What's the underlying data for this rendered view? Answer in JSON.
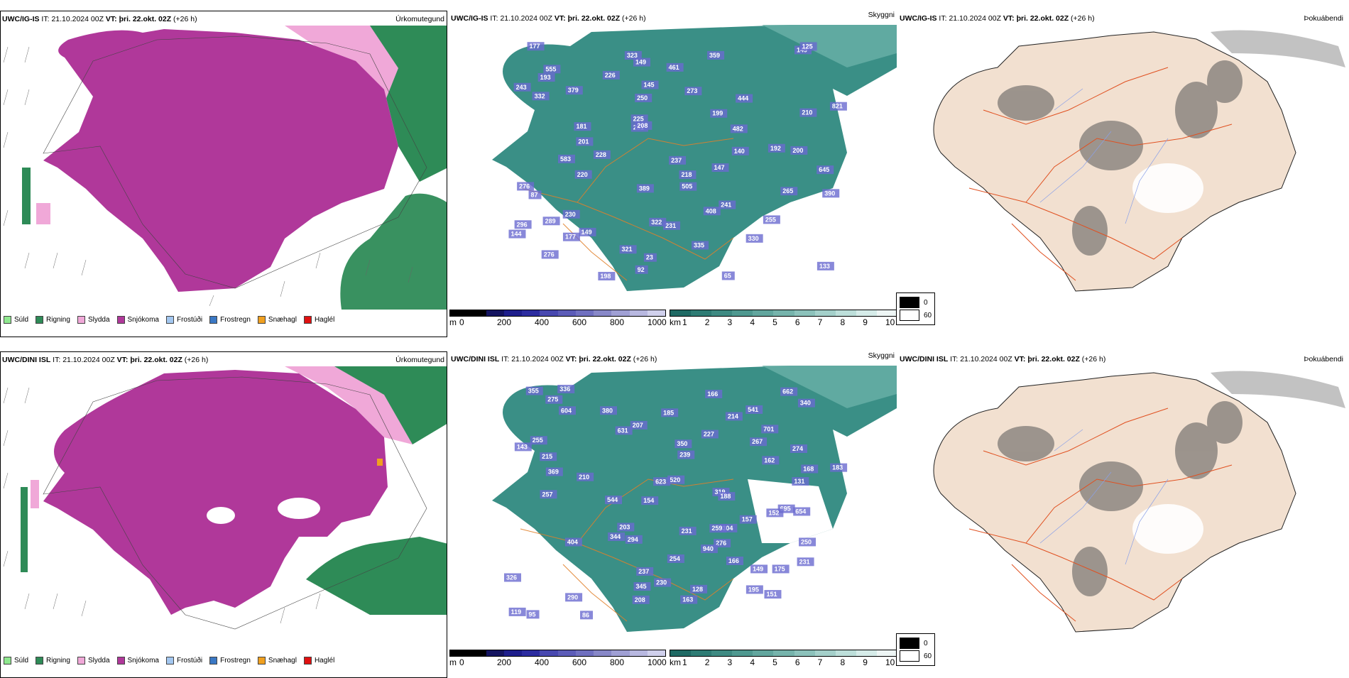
{
  "rows": [
    {
      "model": "UWC/IG-IS",
      "it_label": "IT:",
      "it_value": "21.10.2024 00Z",
      "vt_label": "VT:",
      "vt_value": "þri. 22.okt. 02Z",
      "lead": "(+26 h)",
      "panel_titles": [
        "Úrkomutegund",
        "Skyggni",
        "Þokuábendi"
      ],
      "vis_labels": [
        "149",
        "177",
        "125",
        "323",
        "359",
        "555",
        "149",
        "461",
        "193",
        "226",
        "243",
        "379",
        "145",
        "273",
        "444",
        "332",
        "250",
        "821",
        "199",
        "210",
        "225",
        "231",
        "208",
        "181",
        "482",
        "201",
        "192",
        "200",
        "140",
        "237",
        "228",
        "583",
        "147",
        "220",
        "645",
        "218",
        "276",
        "389",
        "505",
        "87",
        "265",
        "390",
        "241",
        "408",
        "230",
        "289",
        "296",
        "231",
        "255",
        "322",
        "149",
        "144",
        "177",
        "330",
        "276",
        "335",
        "321",
        "23",
        "133",
        "92",
        "198",
        "65"
      ]
    },
    {
      "model": "UWC/DINI ISL",
      "it_label": "IT:",
      "it_value": "21.10.2024 00Z",
      "vt_label": "VT:",
      "vt_value": "þri. 22.okt. 02Z",
      "lead": "(+26 h)",
      "panel_titles": [
        "Úrkomutegund",
        "Skyggni",
        "Þokuábendi"
      ],
      "vis_labels": [
        "662",
        "336",
        "166",
        "355",
        "340",
        "275",
        "604",
        "380",
        "541",
        "185",
        "214",
        "701",
        "631",
        "207",
        "227",
        "255",
        "267",
        "350",
        "143",
        "215",
        "274",
        "239",
        "162",
        "183",
        "168",
        "369",
        "210",
        "520",
        "623",
        "131",
        "319",
        "257",
        "544",
        "188",
        "154",
        "695",
        "654",
        "157",
        "152",
        "304",
        "203",
        "231",
        "344",
        "259",
        "294",
        "404",
        "250",
        "276",
        "940",
        "254",
        "166",
        "231",
        "149",
        "175",
        "237",
        "326",
        "345",
        "230",
        "128",
        "195",
        "208",
        "151",
        "290",
        "163",
        "119",
        "95",
        "86"
      ]
    }
  ],
  "precip_legend": [
    {
      "label": "Súld",
      "color": "#8fe88f"
    },
    {
      "label": "Rigning",
      "color": "#2e8b57"
    },
    {
      "label": "Slydda",
      "color": "#f0a8d8"
    },
    {
      "label": "Snjókoma",
      "color": "#b0389a"
    },
    {
      "label": "Frostúði",
      "color": "#a3c7f0"
    },
    {
      "label": "Frostregn",
      "color": "#3a78c4"
    },
    {
      "label": "Snæhagl",
      "color": "#f0a020"
    },
    {
      "label": "Haglél",
      "color": "#e01010"
    }
  ],
  "m_scale": {
    "unit": "m",
    "ticks": [
      "0",
      "200",
      "400",
      "600",
      "800",
      "1000"
    ],
    "colors": [
      "#000",
      "#000",
      "#141460",
      "#1e1e8c",
      "#2c2ca0",
      "#4848b0",
      "#5c5cb8",
      "#7070c0",
      "#8888c8",
      "#a0a0d4",
      "#b8b8e0",
      "#d0d0ec"
    ]
  },
  "km_scale": {
    "unit": "km",
    "ticks": [
      "1",
      "2",
      "3",
      "4",
      "5",
      "6",
      "7",
      "8",
      "9",
      "10"
    ],
    "colors": [
      "#1f6a64",
      "#2e7c74",
      "#3e8a82",
      "#4f9990",
      "#62a69e",
      "#76b4ac",
      "#8cc2bb",
      "#a4d0ca",
      "#bddfda",
      "#d6ece9",
      "#eef6f5"
    ]
  },
  "fog_legend": [
    "0",
    "60"
  ],
  "colors": {
    "snow": "#b0389a",
    "rain": "#2e8b57",
    "sleet": "#f0a8d8",
    "drizzle": "#8fe88f",
    "vis_teal": "#3a8f86",
    "fog_land": "#f2e0d0",
    "roads": "#e0602a"
  }
}
